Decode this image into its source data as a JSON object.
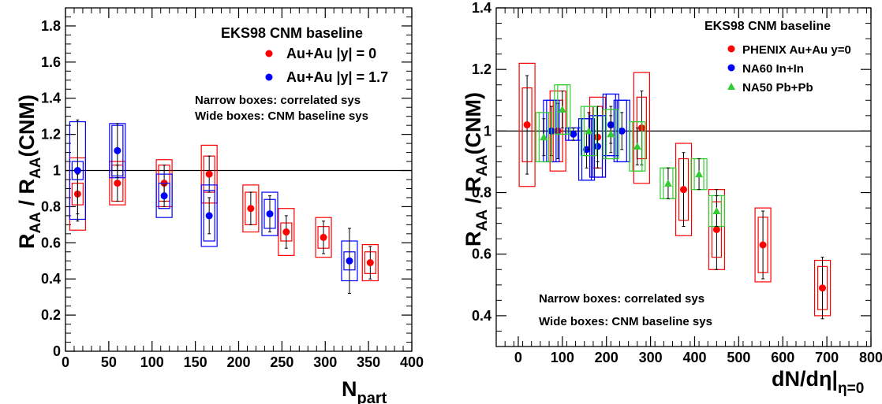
{
  "chart_data": [
    {
      "type": "scatter",
      "xlabel": "N",
      "xlabel_sub": "part",
      "ylabel_pre": "R",
      "ylabel_sub1": "AA",
      "ylabel_mid": " / R",
      "ylabel_sub2": "AA",
      "ylabel_post": "(CNM)",
      "xlim": [
        0,
        400
      ],
      "ylim": [
        0,
        1.9
      ],
      "x_ticks": [
        0,
        50,
        100,
        150,
        200,
        250,
        300,
        350,
        400
      ],
      "y_ticks": [
        0,
        0.2,
        0.4,
        0.6,
        0.8,
        1,
        1.2,
        1.4,
        1.6,
        1.8
      ],
      "x_tick_labels": [
        "0",
        "50",
        "100",
        "150",
        "200",
        "250",
        "300",
        "350",
        "400"
      ],
      "y_tick_labels": [
        "0",
        "0.2",
        "0.4",
        "0.6",
        "0.8",
        "1",
        "1.2",
        "1.4",
        "1.6",
        "1.8"
      ],
      "reference_line": 1,
      "legend_title": "EKS98 CNM baseline",
      "legend_placement": "top-right",
      "notes": [
        "Narrow boxes: correlated sys",
        "Wide boxes: CNM baseline sys"
      ],
      "series": [
        {
          "name": "Au+Au |y| = 0",
          "color": "#ff0000",
          "points": [
            {
              "x": 14,
              "y": 0.87,
              "stat": 0.11,
              "narrow": 0.06,
              "wide": 0.2
            },
            {
              "x": 60,
              "y": 0.93,
              "stat": 0.1,
              "narrow": 0.1,
              "wide": 0.12
            },
            {
              "x": 114,
              "y": 0.93,
              "stat": 0.1,
              "narrow": 0.1,
              "wide": 0.13
            },
            {
              "x": 166,
              "y": 0.98,
              "stat": 0.1,
              "narrow": 0.1,
              "wide": 0.16
            },
            {
              "x": 214,
              "y": 0.79,
              "stat": 0.09,
              "narrow": 0.09,
              "wide": 0.13
            },
            {
              "x": 255,
              "y": 0.66,
              "stat": 0.09,
              "narrow": 0.05,
              "wide": 0.13
            },
            {
              "x": 298,
              "y": 0.63,
              "stat": 0.09,
              "narrow": 0.06,
              "wide": 0.11
            },
            {
              "x": 352,
              "y": 0.49,
              "stat": 0.09,
              "narrow": 0.06,
              "wide": 0.1
            }
          ]
        },
        {
          "name": "Au+Au |y| = 1.7",
          "color": "#0000ff",
          "points": [
            {
              "x": 14,
              "y": 1.0,
              "stat": 0.28,
              "narrow": 0.05,
              "wide": 0.27
            },
            {
              "x": 60,
              "y": 1.11,
              "stat": 0.15,
              "narrow": 0.14,
              "wide": 0.15
            },
            {
              "x": 114,
              "y": 0.86,
              "stat": 0.06,
              "narrow": 0.07,
              "wide": 0.12
            },
            {
              "x": 166,
              "y": 0.75,
              "stat": 0.1,
              "narrow": 0.14,
              "wide": 0.17
            },
            {
              "x": 236,
              "y": 0.76,
              "stat": 0.1,
              "narrow": 0.08,
              "wide": 0.12
            },
            {
              "x": 328,
              "y": 0.5,
              "stat": 0.18,
              "narrow": 0.05,
              "wide": 0.11
            }
          ]
        }
      ]
    },
    {
      "type": "scatter",
      "xlabel": "dN/dη|",
      "xlabel_sub": "η=0",
      "ylabel_pre": "R",
      "ylabel_sub1": "AA",
      "ylabel_mid": " / R",
      "ylabel_sub2": "AA",
      "ylabel_post": "(CNM)",
      "xlim": [
        -50,
        800
      ],
      "ylim": [
        0.3,
        1.4
      ],
      "x_ticks": [
        0,
        100,
        200,
        300,
        400,
        500,
        600,
        700,
        800
      ],
      "y_ticks": [
        0.4,
        0.6,
        0.8,
        1,
        1.2,
        1.4
      ],
      "x_tick_labels": [
        "0",
        "100",
        "200",
        "300",
        "400",
        "500",
        "600",
        "700",
        "800"
      ],
      "y_tick_labels": [
        "0.4",
        "0.6",
        "0.8",
        "1",
        "1.2",
        "1.4"
      ],
      "reference_line": 1,
      "legend_title": "EKS98 CNM baseline",
      "legend_placement": "top-right",
      "notes": [
        "Narrow boxes: correlated sys",
        "Wide boxes: CNM baseline sys"
      ],
      "series": [
        {
          "name": "PHENIX Au+Au y=0",
          "color": "#ff0000",
          "points": [
            {
              "x": 20,
              "y": 1.02,
              "stat": 0.16,
              "narrow": 0.12,
              "wide": 0.2
            },
            {
              "x": 90,
              "y": 1.0,
              "stat": 0.09,
              "narrow": 0.1,
              "wide": 0.13
            },
            {
              "x": 180,
              "y": 0.98,
              "stat": 0.1,
              "narrow": 0.1,
              "wide": 0.13
            },
            {
              "x": 280,
              "y": 1.01,
              "stat": 0.12,
              "narrow": 0.1,
              "wide": 0.18
            },
            {
              "x": 375,
              "y": 0.81,
              "stat": 0.12,
              "narrow": 0.1,
              "wide": 0.15
            },
            {
              "x": 450,
              "y": 0.68,
              "stat": 0.13,
              "narrow": 0.09,
              "wide": 0.13
            },
            {
              "x": 555,
              "y": 0.63,
              "stat": 0.11,
              "narrow": 0.09,
              "wide": 0.12
            },
            {
              "x": 690,
              "y": 0.49,
              "stat": 0.1,
              "narrow": 0.07,
              "wide": 0.09
            }
          ]
        },
        {
          "name": "NA60 In+In",
          "color": "#0000ff",
          "points": [
            {
              "x": 75,
              "y": 1.0,
              "stat": 0.08,
              "narrow": 0.1,
              "wide": 0.1
            },
            {
              "x": 125,
              "y": 0.99,
              "stat": 0.02,
              "narrow": 0.02,
              "wide": 0.02
            },
            {
              "x": 155,
              "y": 0.94,
              "stat": 0.06,
              "narrow": 0.1,
              "wide": 0.1
            },
            {
              "x": 180,
              "y": 0.95,
              "stat": 0.05,
              "narrow": 0.1,
              "wide": 0.1
            },
            {
              "x": 210,
              "y": 1.02,
              "stat": 0.06,
              "narrow": 0.1,
              "wide": 0.1
            },
            {
              "x": 235,
              "y": 1.0,
              "stat": 0.06,
              "narrow": 0.1,
              "wide": 0.1
            }
          ]
        },
        {
          "name": "NA50 Pb+Pb",
          "color": "#33cc33",
          "points": [
            {
              "x": 58,
              "y": 0.98,
              "stat": 0.06,
              "narrow": 0.08,
              "wide": 0.08
            },
            {
              "x": 100,
              "y": 1.07,
              "stat": 0.06,
              "narrow": 0.08,
              "wide": 0.08
            },
            {
              "x": 160,
              "y": 1.0,
              "stat": 0.06,
              "narrow": 0.08,
              "wide": 0.08
            },
            {
              "x": 210,
              "y": 0.99,
              "stat": 0.06,
              "narrow": 0.08,
              "wide": 0.08
            },
            {
              "x": 270,
              "y": 0.95,
              "stat": 0.06,
              "narrow": 0.08,
              "wide": 0.08
            },
            {
              "x": 340,
              "y": 0.83,
              "stat": 0.05,
              "narrow": 0.05,
              "wide": 0.05
            },
            {
              "x": 410,
              "y": 0.86,
              "stat": 0.05,
              "narrow": 0.05,
              "wide": 0.05
            },
            {
              "x": 450,
              "y": 0.74,
              "stat": 0.05,
              "narrow": 0.05,
              "wide": 0.05
            }
          ]
        }
      ]
    }
  ]
}
